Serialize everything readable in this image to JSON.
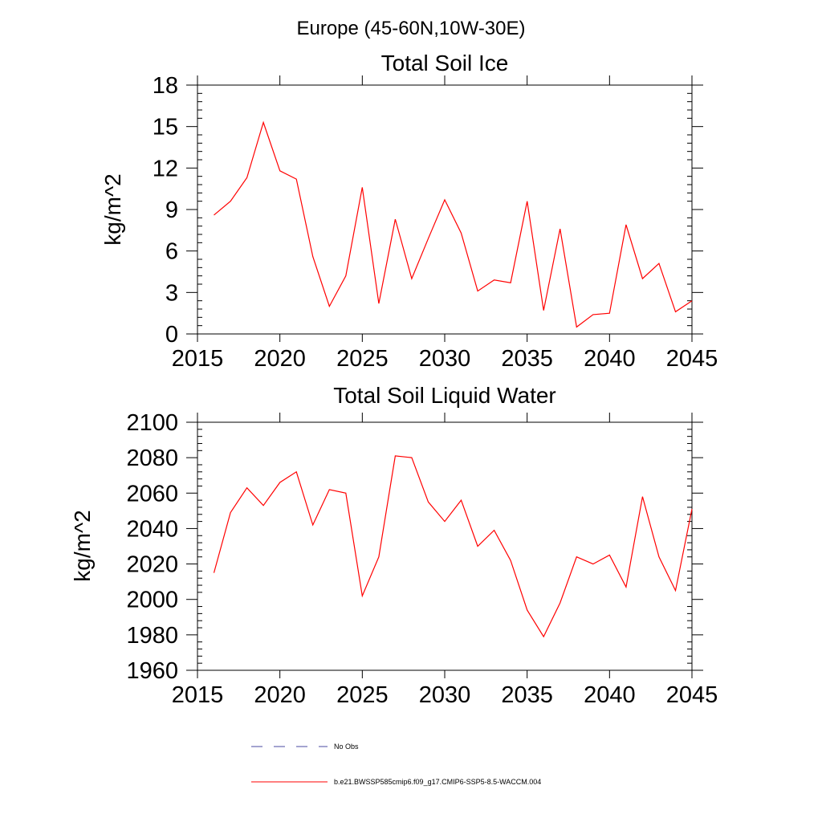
{
  "page_title": "Europe (45-60N,10W-30E)",
  "chart_data": [
    {
      "type": "line",
      "title": "Total Soil Ice",
      "xlabel": "",
      "ylabel": "kg/m^2",
      "xlim": [
        2015,
        2045
      ],
      "ylim": [
        0,
        18
      ],
      "x_ticks": [
        2015,
        2020,
        2025,
        2030,
        2035,
        2040,
        2045
      ],
      "y_ticks": [
        0,
        3,
        6,
        9,
        12,
        15,
        18
      ],
      "x_tick_labels": [
        "2015",
        "2020",
        "2025",
        "2030",
        "2035",
        "2040",
        "2045"
      ],
      "y_tick_labels": [
        "0",
        "3",
        "6",
        "9",
        "12",
        "15",
        "18"
      ],
      "series": [
        {
          "name": "b.e21.BWSSP585cmip6.f09_g17.CMIP6-SSP5-8.5-WACCM.004",
          "color": "#ff0000",
          "x": [
            2016,
            2017,
            2018,
            2019,
            2020,
            2021,
            2022,
            2023,
            2024,
            2025,
            2026,
            2027,
            2028,
            2029,
            2030,
            2031,
            2032,
            2033,
            2034,
            2035,
            2036,
            2037,
            2038,
            2039,
            2040,
            2041,
            2042,
            2043,
            2044,
            2045
          ],
          "values": [
            8.6,
            9.6,
            11.3,
            15.3,
            11.8,
            11.2,
            5.6,
            2.0,
            4.2,
            10.6,
            2.2,
            8.3,
            4.0,
            6.9,
            9.7,
            7.3,
            3.1,
            3.9,
            3.7,
            9.6,
            1.7,
            7.6,
            0.5,
            1.4,
            1.5,
            7.9,
            4.0,
            5.1,
            1.6,
            2.4
          ]
        }
      ]
    },
    {
      "type": "line",
      "title": "Total Soil Liquid Water",
      "xlabel": "",
      "ylabel": "kg/m^2",
      "xlim": [
        2015,
        2045
      ],
      "ylim": [
        1960,
        2100
      ],
      "x_ticks": [
        2015,
        2020,
        2025,
        2030,
        2035,
        2040,
        2045
      ],
      "y_ticks": [
        1960,
        1980,
        2000,
        2020,
        2040,
        2060,
        2080,
        2100
      ],
      "x_tick_labels": [
        "2015",
        "2020",
        "2025",
        "2030",
        "2035",
        "2040",
        "2045"
      ],
      "y_tick_labels": [
        "1960",
        "1980",
        "2000",
        "2020",
        "2040",
        "2060",
        "2080",
        "2100"
      ],
      "series": [
        {
          "name": "b.e21.BWSSP585cmip6.f09_g17.CMIP6-SSP5-8.5-WACCM.004",
          "color": "#ff0000",
          "x": [
            2016,
            2017,
            2018,
            2019,
            2020,
            2021,
            2022,
            2023,
            2024,
            2025,
            2026,
            2027,
            2028,
            2029,
            2030,
            2031,
            2032,
            2033,
            2034,
            2035,
            2036,
            2037,
            2038,
            2039,
            2040,
            2041,
            2042,
            2043,
            2044,
            2045
          ],
          "values": [
            2015,
            2049,
            2063,
            2053,
            2066,
            2072,
            2042,
            2062,
            2060,
            2002,
            2024,
            2081,
            2080,
            2055,
            2044,
            2056,
            2030,
            2039,
            2022,
            1994,
            1979,
            1998,
            2024,
            2020,
            2025,
            2007,
            2058,
            2024,
            2005,
            2051
          ]
        }
      ]
    }
  ],
  "legend": {
    "items": [
      {
        "label": "No Obs",
        "color": "#4a4aa0",
        "style": "dashed"
      },
      {
        "label": "b.e21.BWSSP585cmip6.f09_g17.CMIP6-SSP5-8.5-WACCM.004",
        "color": "#ff0000",
        "style": "solid"
      }
    ]
  }
}
